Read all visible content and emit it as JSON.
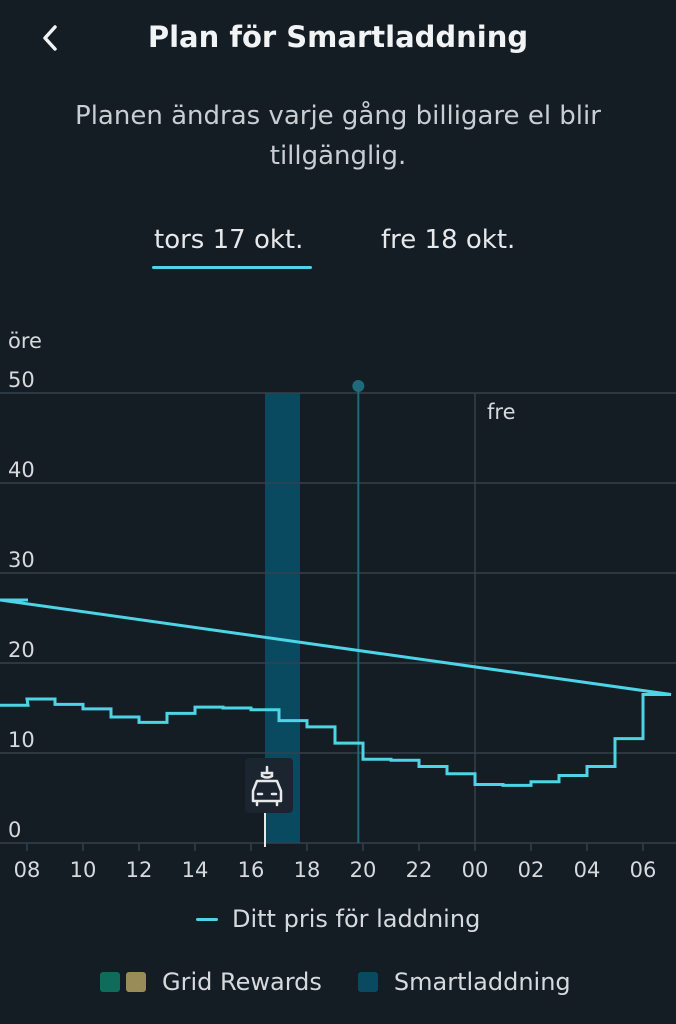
{
  "header": {
    "title": "Plan för Smartladdning",
    "back_icon": "chevron-left-icon"
  },
  "subtitle": "Planen ändras varje gång billigare el blir tillgänglig.",
  "tabs": [
    {
      "label": "tors 17 okt.",
      "selected": true
    },
    {
      "label": "fre 18 okt.",
      "selected": false
    }
  ],
  "chart_data": {
    "type": "line",
    "step": true,
    "ylabel": "öre",
    "ylim": [
      0,
      50
    ],
    "y_ticks": [
      "0",
      "10",
      "20",
      "30",
      "40",
      "50"
    ],
    "x_ticks": [
      "08",
      "10",
      "12",
      "14",
      "16",
      "18",
      "20",
      "22",
      "00",
      "02",
      "04",
      "06"
    ],
    "day_marker_label": "fre",
    "series": [
      {
        "name": "Ditt pris för laddning",
        "color": "#4dd4e6",
        "x": [
          "07:00",
          "08:00",
          "09:00",
          "10:00",
          "11:00",
          "12:00",
          "13:00",
          "14:00",
          "15:00",
          "16:00",
          "17:00",
          "18:00",
          "19:00",
          "20:00",
          "21:00",
          "22:00",
          "23:00",
          "00:00",
          "01:00",
          "02:00",
          "03:00",
          "04:00",
          "05:00",
          "06:00",
          "07:00"
        ],
        "values": [
          15.3,
          16.0,
          15.4,
          14.9,
          14.0,
          13.4,
          14.4,
          15.1,
          15.0,
          14.8,
          13.6,
          12.9,
          11.1,
          9.3,
          9.2,
          8.5,
          7.7,
          6.5,
          6.4,
          6.8,
          7.5,
          8.5,
          11.6,
          16.5,
          27.0
        ]
      }
    ],
    "smart_charging_window": {
      "start": "16:30",
      "end": "17:45",
      "color": "#0a4a60"
    },
    "now_marker": "19:50",
    "charge_start_marker": "16:30"
  },
  "legend": {
    "price_label": "Ditt pris för laddning",
    "grid_rewards_label": "Grid Rewards",
    "smart_label": "Smartladdning",
    "grid_rewards_colors": [
      "#0f6b5a",
      "#9a8c58"
    ],
    "smart_color": "#0a4a60"
  }
}
